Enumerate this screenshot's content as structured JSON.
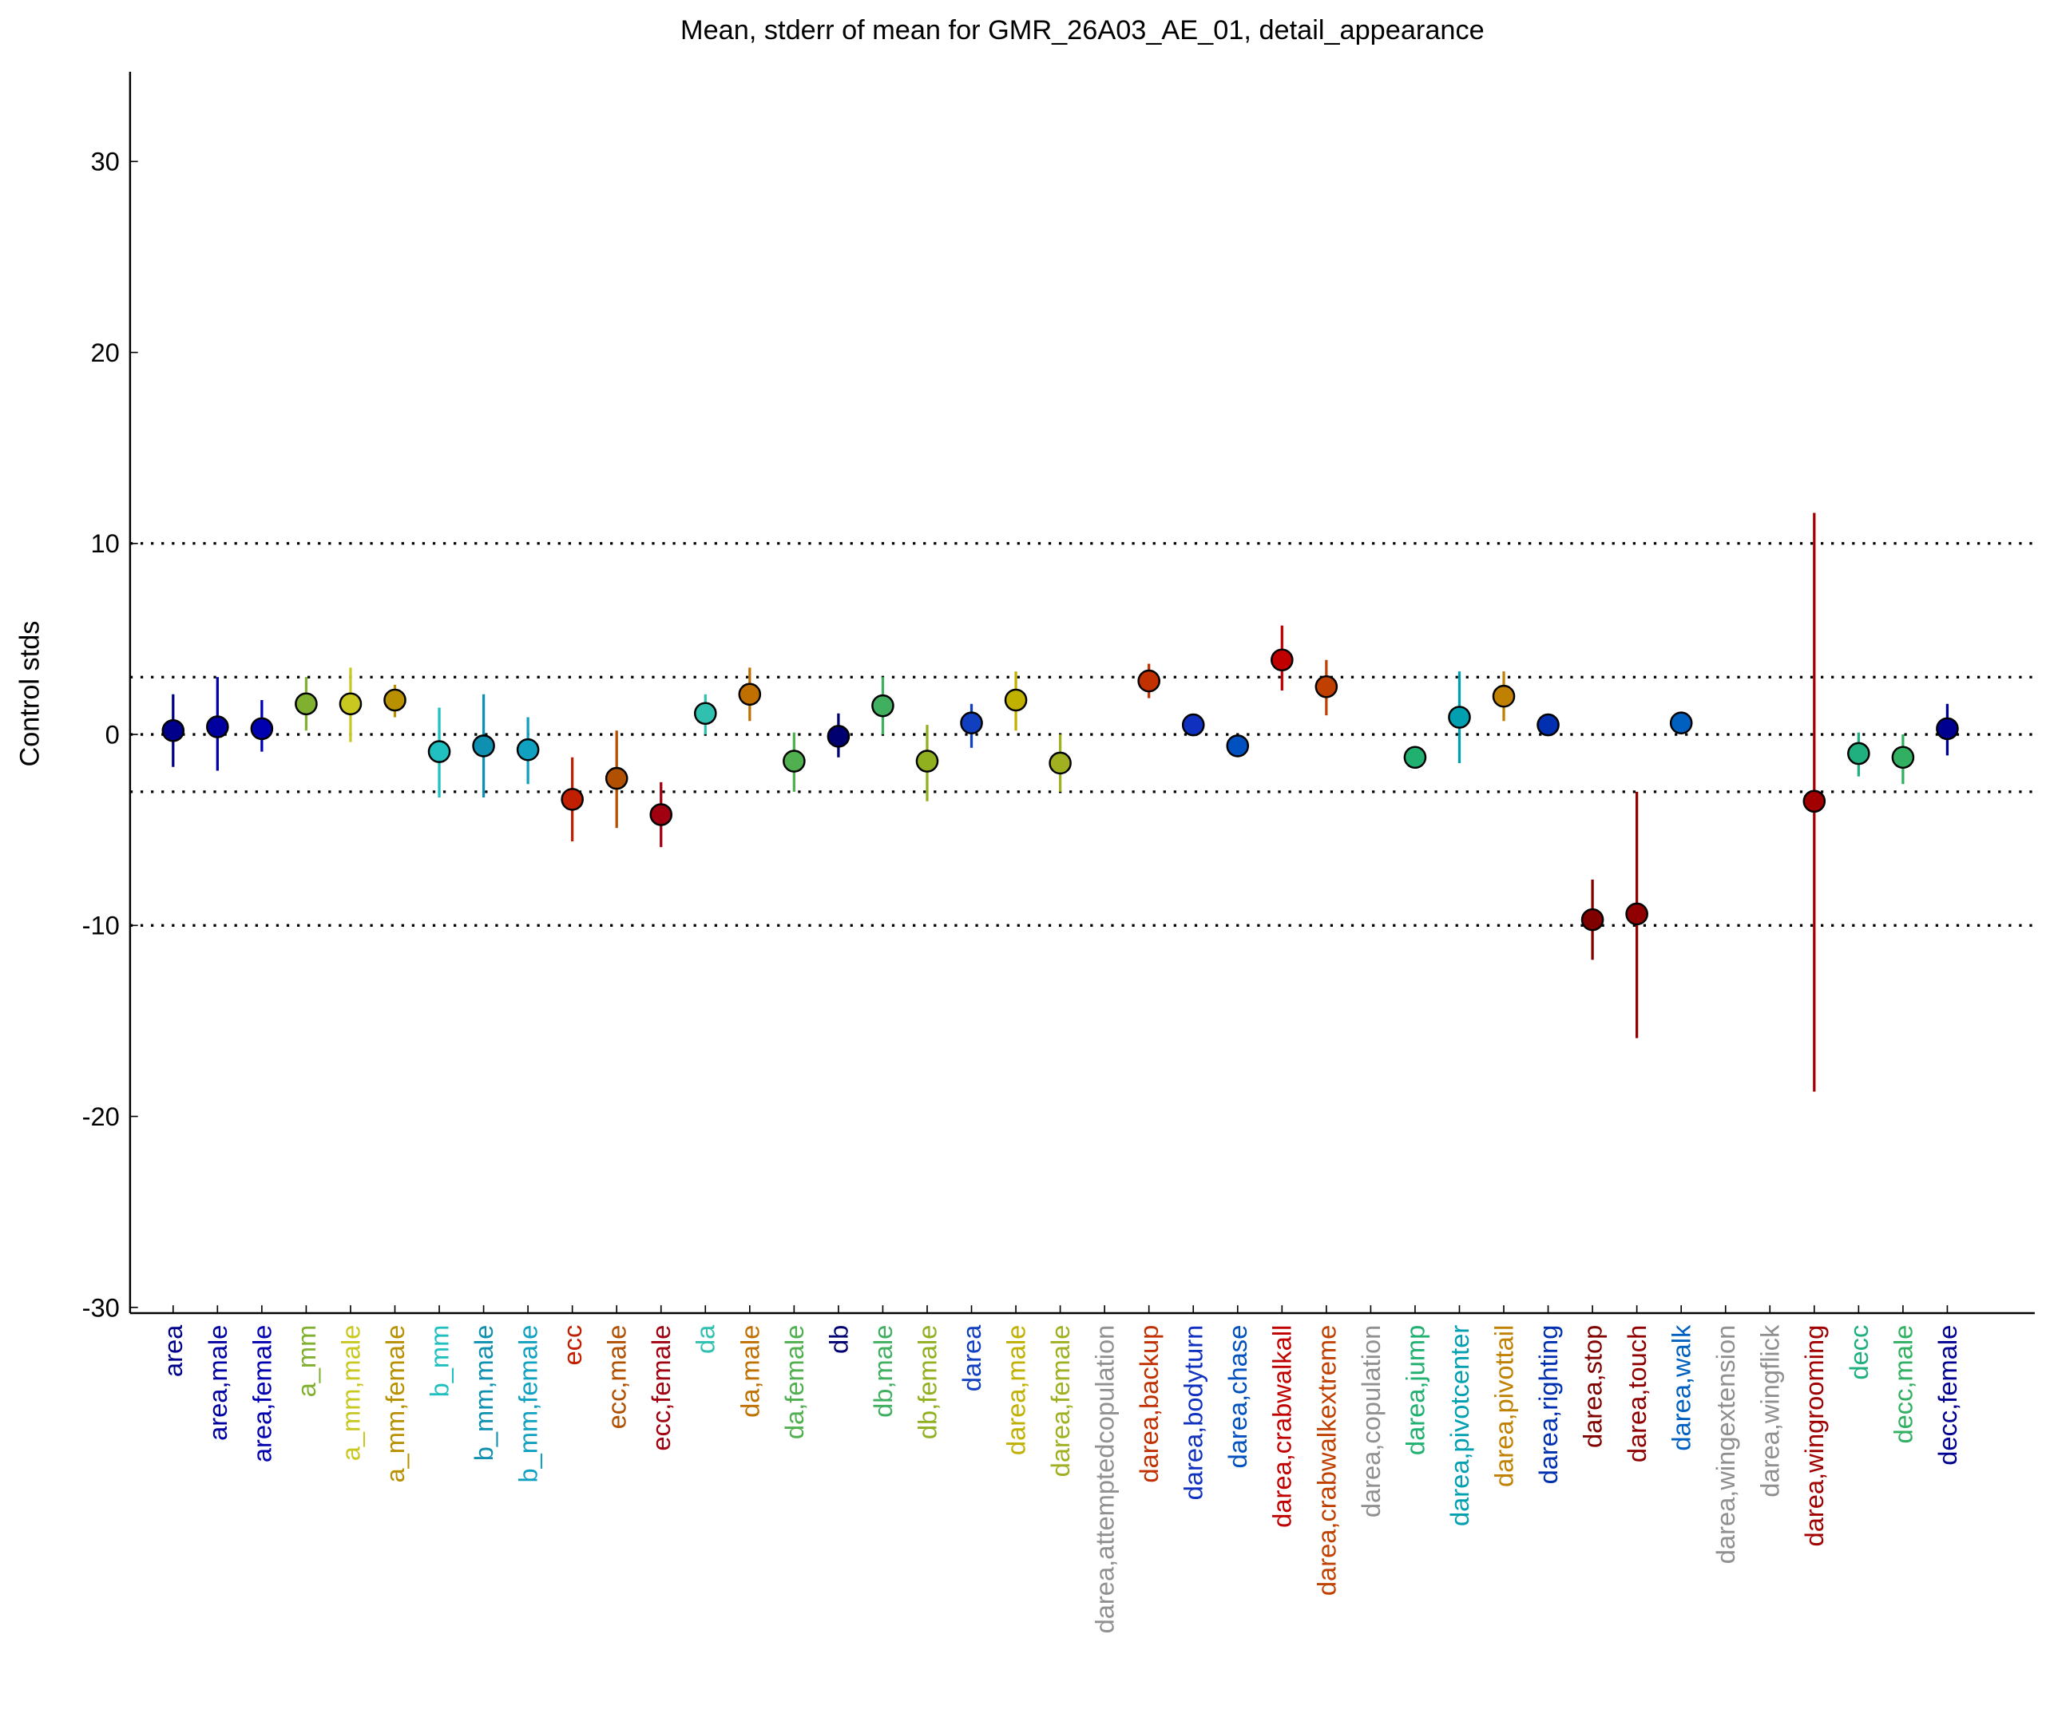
{
  "chart_data": {
    "type": "errorbar",
    "title": "Mean, stderr of mean for GMR_26A03_AE_01, detail_appearance",
    "y_label": "Control stds",
    "categories": [
      "area",
      "area,male",
      "area,female",
      "a_mm",
      "a_mm,male",
      "a_mm,female",
      "b_mm",
      "b_mm,male",
      "b_mm,female",
      "ecc",
      "ecc,male",
      "ecc,female",
      "da",
      "da,male",
      "da,female",
      "db",
      "db,male",
      "db,female",
      "darea",
      "darea,male",
      "darea,female",
      "darea,attemptedcopulation",
      "darea,backup",
      "darea,bodyturn",
      "darea,chase",
      "darea,crabwalkall",
      "darea,crabwalkextreme",
      "darea,copulation",
      "darea,jump",
      "darea,pivotcenter",
      "darea,pivottail",
      "darea,righting",
      "darea,stop",
      "darea,touch",
      "darea,walk",
      "darea,wingextension",
      "darea,wingflick",
      "darea,wingrooming",
      "decc",
      "decc,male",
      "decc,female"
    ],
    "values": [
      0.2,
      0.4,
      0.3,
      1.6,
      1.6,
      1.8,
      -0.9,
      -0.6,
      -0.8,
      -3.4,
      -2.3,
      -4.2,
      1.1,
      2.1,
      -1.4,
      -0.1,
      1.5,
      -1.4,
      0.6,
      1.8,
      -1.5,
      null,
      2.8,
      0.5,
      -0.6,
      3.9,
      2.5,
      null,
      -1.2,
      0.9,
      2.0,
      0.5,
      -9.7,
      -9.4,
      0.6,
      null,
      null,
      -3.5,
      -1.0,
      -1.2,
      0.3
    ],
    "lower": [
      -1.7,
      -1.9,
      -0.9,
      0.2,
      -0.4,
      0.9,
      -3.3,
      -3.3,
      -2.6,
      -5.6,
      -4.9,
      -5.9,
      0.0,
      0.7,
      -3.0,
      -1.2,
      0.0,
      -3.5,
      -0.7,
      0.2,
      -3.0,
      null,
      1.9,
      0.1,
      -1.0,
      2.3,
      1.0,
      null,
      -1.5,
      -1.5,
      0.7,
      0.2,
      -11.8,
      -15.9,
      0.3,
      null,
      null,
      -18.7,
      -2.2,
      -2.6,
      -1.1
    ],
    "upper": [
      2.1,
      3.0,
      1.8,
      3.0,
      3.5,
      2.6,
      1.4,
      2.1,
      0.9,
      -1.2,
      0.2,
      -2.5,
      2.1,
      3.5,
      0.1,
      1.1,
      3.0,
      0.5,
      1.6,
      3.3,
      0.0,
      null,
      3.7,
      0.9,
      -0.2,
      5.7,
      3.9,
      null,
      -0.9,
      3.3,
      3.3,
      0.9,
      -7.6,
      -3.0,
      1.0,
      null,
      null,
      11.6,
      0.1,
      0.0,
      1.6
    ],
    "colors": [
      "#00008b",
      "#0000a0",
      "#0000b0",
      "#80b030",
      "#c8c820",
      "#b89000",
      "#20c0c0",
      "#1090b0",
      "#10a0c0",
      "#c02000",
      "#b05000",
      "#a00010",
      "#30c0b0",
      "#c07000",
      "#50b050",
      "#000070",
      "#40b060",
      "#90b020",
      "#1040c0",
      "#c0b000",
      "#a0b020",
      "#909090",
      "#c03000",
      "#1030c0",
      "#0050c0",
      "#c00000",
      "#c04000",
      "#909090",
      "#20b070",
      "#00a0b0",
      "#c08000",
      "#0030b0",
      "#800000",
      "#900000",
      "#0060c0",
      "#909090",
      "#909090",
      "#a00000",
      "#20b080",
      "#30b060",
      "#000090"
    ],
    "ylim": [
      -30.3,
      34.7
    ],
    "yticks": [
      -30,
      -20,
      -10,
      0,
      10,
      20,
      30
    ],
    "hlines": [
      10,
      3,
      0,
      -3,
      -10
    ]
  }
}
